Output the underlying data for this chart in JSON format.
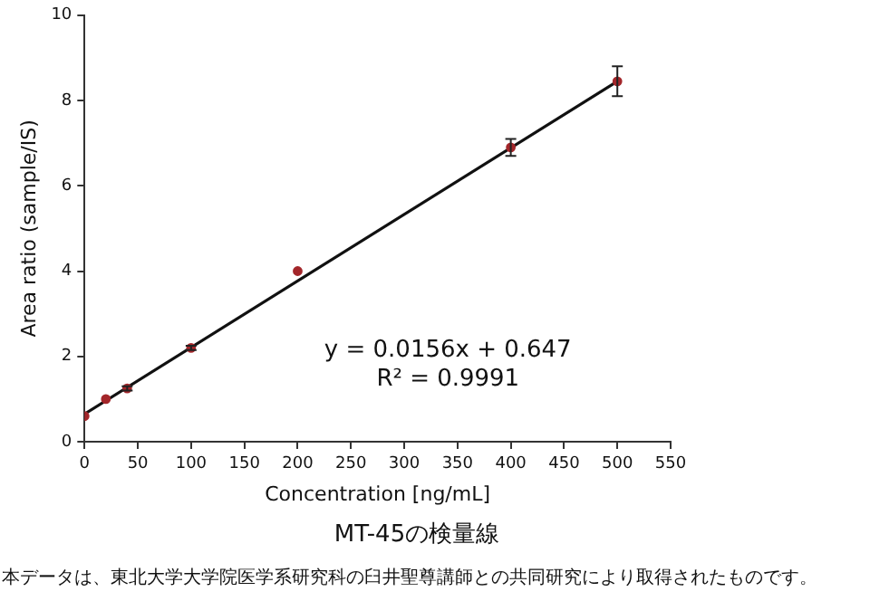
{
  "chart_data": {
    "type": "scatter",
    "title": "MT-45の検量線",
    "xlabel": "Concentration [ng/mL]",
    "ylabel": "Area ratio (sample/IS)",
    "x": [
      0,
      20,
      40,
      100,
      200,
      400,
      500
    ],
    "series": [
      {
        "color": "#a3262a",
        "values": [
          0.6,
          1.0,
          1.25,
          2.2,
          4.0,
          6.9,
          8.45
        ],
        "errors": [
          null,
          null,
          0.05,
          0.05,
          null,
          0.2,
          0.35
        ],
        "marker": "circle"
      },
      {
        "type": "line",
        "color": "#111111",
        "x": [
          0,
          500
        ],
        "values": [
          0.65,
          8.45
        ],
        "marker": "none",
        "line_style": "solid"
      }
    ],
    "annotations": [
      "y = 0.0156x + 0.647",
      "R² = 0.9991",
      "本データは、東北大学大学院医学系研究科の臼井聖尊講師との共同研究により取得されたものです。"
    ],
    "xlim": [
      0,
      550
    ],
    "xticks": [
      0,
      50,
      100,
      150,
      200,
      250,
      300,
      350,
      400,
      450,
      500,
      550
    ],
    "ylim": [
      0,
      10
    ],
    "yticks": [
      0,
      2,
      4,
      6,
      8,
      10
    ],
    "grid": false,
    "legend": false
  }
}
